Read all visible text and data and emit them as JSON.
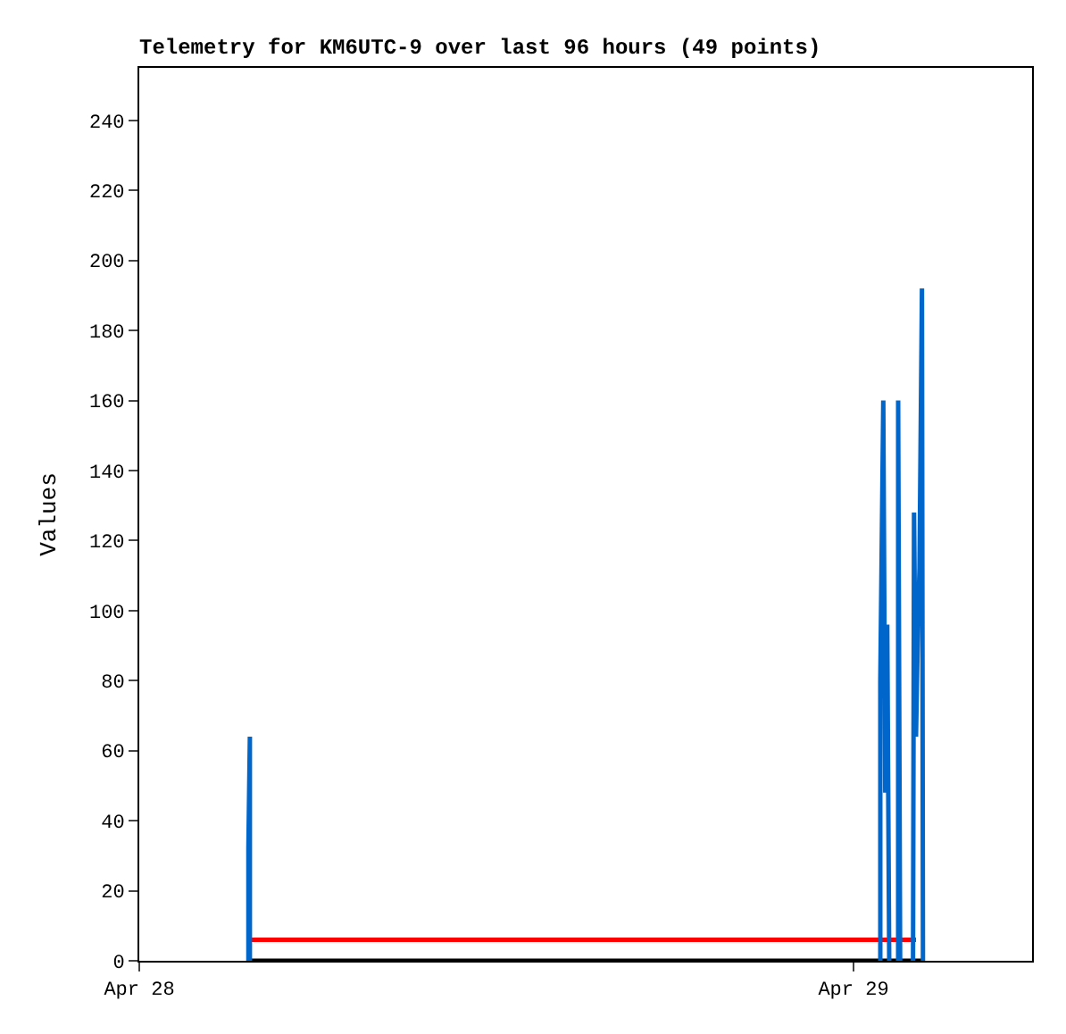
{
  "chart_data": {
    "type": "line",
    "title": "Telemetry for KM6UTC-9 over last 96 hours (49 points)",
    "ylabel": "Values",
    "xlim": [
      "--04-28",
      "--04-29T06:00"
    ],
    "xticks": [
      {
        "value": "--04-28",
        "label": "Apr 28"
      },
      {
        "value": "--04-29",
        "label": "Apr 29"
      }
    ],
    "ylim": [
      0,
      255
    ],
    "yticks": [
      0,
      20,
      40,
      60,
      80,
      100,
      120,
      140,
      160,
      180,
      200,
      220,
      240
    ],
    "grid": false,
    "legend": false,
    "marker": "none",
    "line_style": "solid",
    "series": [
      {
        "color": "#000000",
        "x": [
          "--04-28T03:43",
          "--04-29T02:20"
        ],
        "values": [
          0,
          0
        ]
      },
      {
        "color": "#ff0000",
        "x": [
          "--04-28T03:43",
          "--04-29T02:06"
        ],
        "values": [
          6,
          6
        ]
      },
      {
        "color": "#0066cc",
        "x": [
          "--04-28T03:40",
          "--04-28T03:40",
          "--04-28T03:43",
          "--04-28T03:43",
          null,
          "--04-29T00:54",
          "--04-29T00:54",
          "--04-29T01:00",
          "--04-29T01:04",
          "--04-29T01:08",
          "--04-29T01:12",
          null,
          "--04-29T01:30",
          "--04-29T01:30",
          "--04-29T01:34",
          null,
          "--04-29T02:00",
          "--04-29T02:02",
          "--04-29T02:06",
          "--04-29T02:10",
          "--04-29T02:13",
          "--04-29T02:18",
          "--04-29T02:20"
        ],
        "values": [
          0,
          32,
          64,
          0,
          null,
          0,
          80,
          160,
          48,
          96,
          0,
          null,
          0,
          160,
          0,
          null,
          0,
          128,
          64,
          96,
          112,
          192,
          0
        ]
      }
    ]
  }
}
